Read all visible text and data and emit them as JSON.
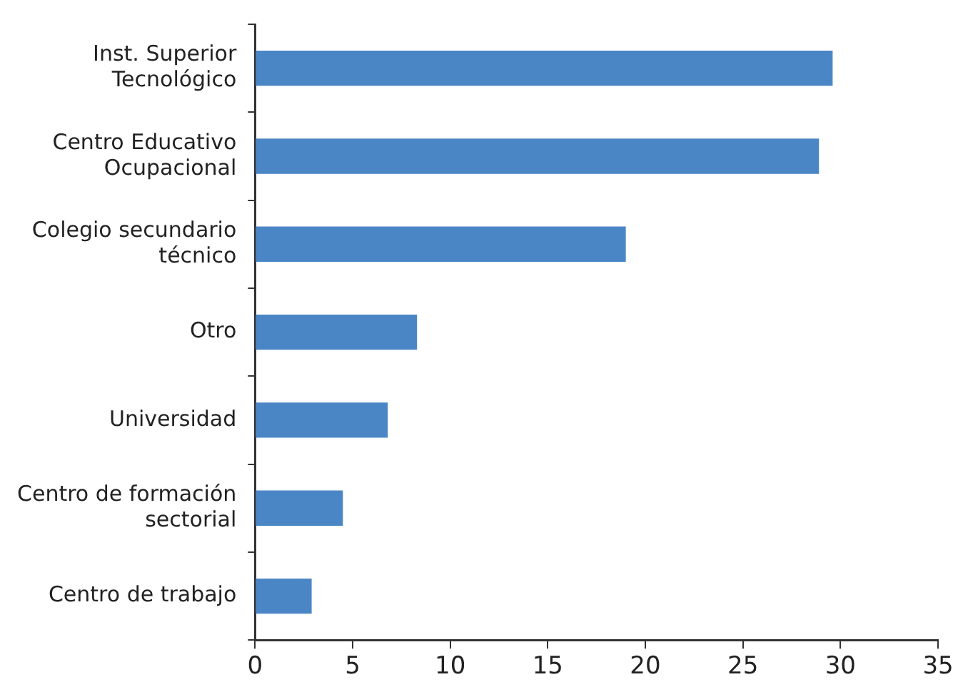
{
  "chart_data": {
    "type": "bar",
    "orientation": "horizontal",
    "categories": [
      "Inst. Superior\nTecnológico",
      "Centro Educativo\nOcupacional",
      "Colegio secundario\ntécnico",
      "Otro",
      "Universidad",
      "Centro de formación\nsectorial",
      "Centro de trabajo"
    ],
    "values": [
      29.6,
      28.9,
      19.0,
      8.3,
      6.8,
      4.5,
      2.9
    ],
    "color": "#4a86c5",
    "xlim": [
      0,
      35
    ],
    "xticks": [
      0,
      5,
      10,
      15,
      20,
      25,
      30,
      35
    ],
    "grid": false,
    "legend": false
  }
}
